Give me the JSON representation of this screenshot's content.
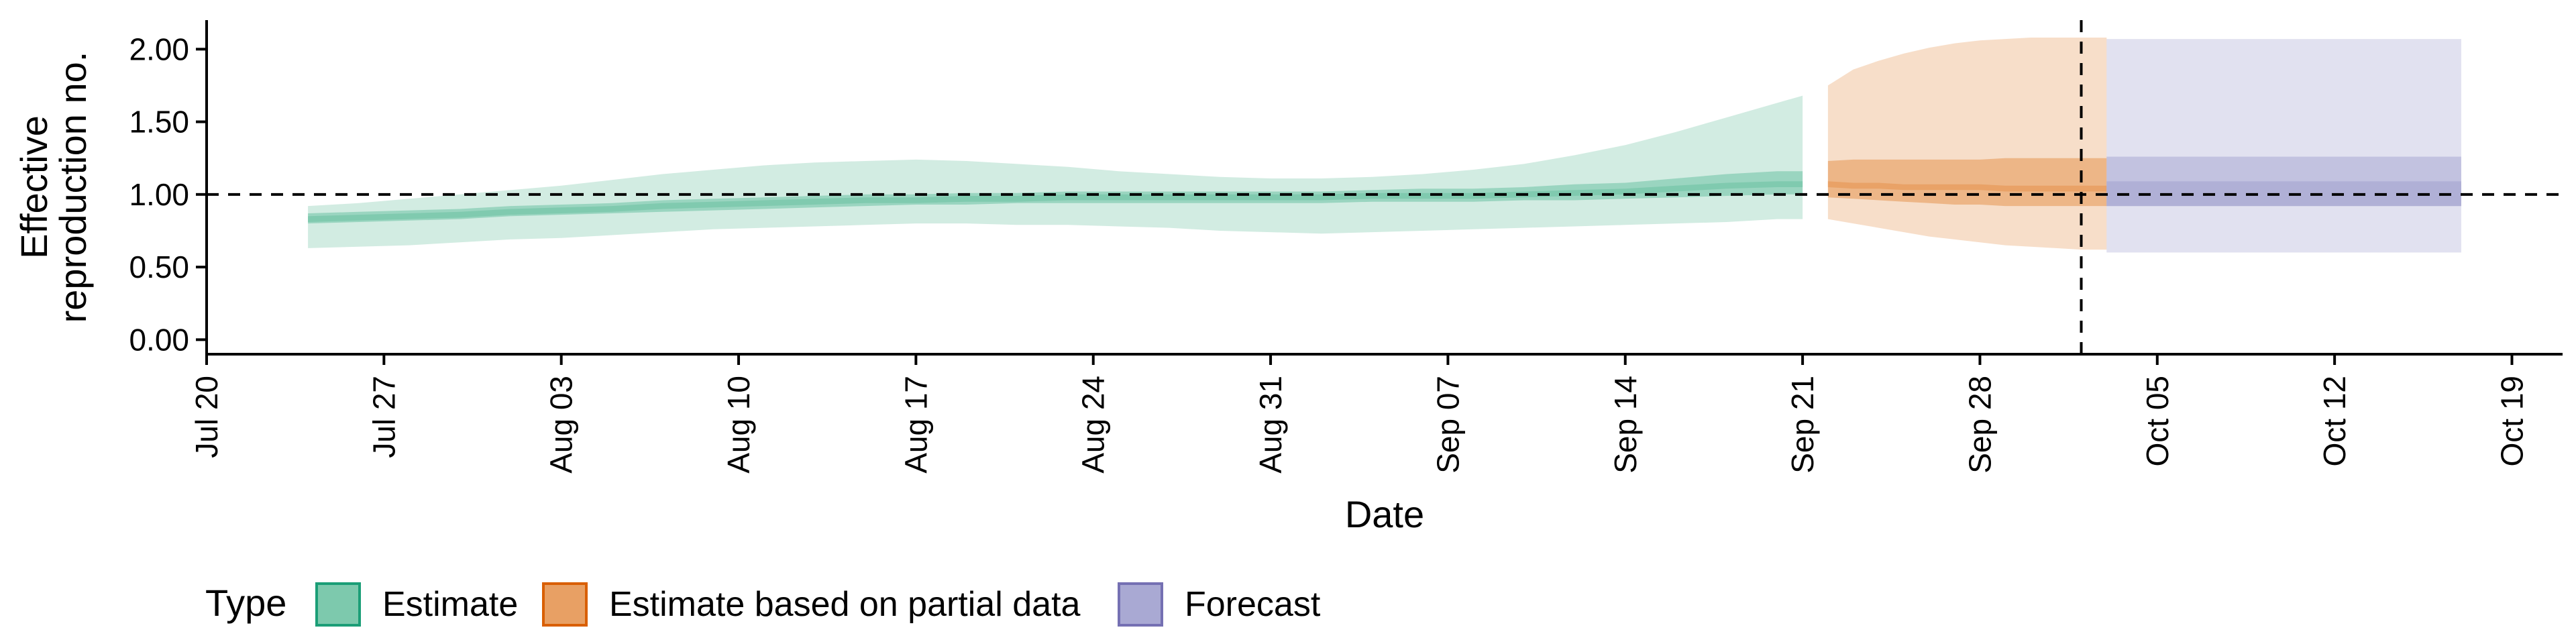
{
  "chart_data": {
    "type": "area",
    "xlabel": "Date",
    "ylabel_lines": [
      "Effective",
      "reproduction no."
    ],
    "x_ticks": [
      "Jul 20",
      "Jul 27",
      "Aug 03",
      "Aug 10",
      "Aug 17",
      "Aug 24",
      "Aug 31",
      "Sep 07",
      "Sep 14",
      "Sep 21",
      "Sep 28",
      "Oct 05",
      "Oct 12",
      "Oct 19"
    ],
    "x_tick_dates": [
      "2020-07-20",
      "2020-07-27",
      "2020-08-03",
      "2020-08-10",
      "2020-08-17",
      "2020-08-24",
      "2020-08-31",
      "2020-09-07",
      "2020-09-14",
      "2020-09-21",
      "2020-09-28",
      "2020-10-05",
      "2020-10-12",
      "2020-10-19"
    ],
    "x_range": [
      "2020-07-20",
      "2020-10-21"
    ],
    "y_ticks": [
      "0.00",
      "0.50",
      "1.00",
      "1.50",
      "2.00"
    ],
    "y_tick_values": [
      0,
      0.5,
      1.0,
      1.5,
      2.0
    ],
    "ylim": [
      -0.1,
      2.2
    ],
    "reference_hline": 1.0,
    "reference_vline_date": "2020-10-02",
    "legend": {
      "title": "Type",
      "position": "bottom-left",
      "items": [
        {
          "label": "Estimate",
          "fill": "#7dc9ad",
          "stroke": "#1b9e77"
        },
        {
          "label": "Estimate based on partial data",
          "fill": "#e8a064",
          "stroke": "#d95f02"
        },
        {
          "label": "Forecast",
          "fill": "#a9a9d3",
          "stroke": "#7570b3"
        }
      ]
    },
    "series": [
      {
        "name": "Estimate",
        "color": "#1b9e77",
        "dates": [
          "2020-07-24",
          "2020-07-26",
          "2020-07-28",
          "2020-07-30",
          "2020-08-01",
          "2020-08-03",
          "2020-08-05",
          "2020-08-07",
          "2020-08-09",
          "2020-08-11",
          "2020-08-13",
          "2020-08-15",
          "2020-08-17",
          "2020-08-19",
          "2020-08-21",
          "2020-08-23",
          "2020-08-25",
          "2020-08-27",
          "2020-08-29",
          "2020-08-31",
          "2020-09-02",
          "2020-09-04",
          "2020-09-06",
          "2020-09-08",
          "2020-09-10",
          "2020-09-12",
          "2020-09-14",
          "2020-09-16",
          "2020-09-18",
          "2020-09-20",
          "2020-09-21"
        ],
        "median": [
          0.83,
          0.84,
          0.85,
          0.86,
          0.88,
          0.89,
          0.9,
          0.92,
          0.93,
          0.94,
          0.95,
          0.96,
          0.96,
          0.97,
          0.97,
          0.98,
          0.98,
          0.98,
          0.98,
          0.98,
          0.98,
          0.99,
          0.99,
          0.99,
          1.0,
          1.01,
          1.02,
          1.04,
          1.06,
          1.07,
          1.07
        ],
        "lower_50": [
          0.8,
          0.81,
          0.82,
          0.83,
          0.85,
          0.86,
          0.87,
          0.88,
          0.89,
          0.9,
          0.91,
          0.92,
          0.93,
          0.93,
          0.94,
          0.94,
          0.94,
          0.94,
          0.94,
          0.94,
          0.94,
          0.95,
          0.95,
          0.95,
          0.96,
          0.96,
          0.97,
          0.98,
          0.99,
          1.0,
          1.0
        ],
        "upper_50": [
          0.87,
          0.88,
          0.89,
          0.9,
          0.92,
          0.93,
          0.94,
          0.96,
          0.97,
          0.98,
          0.99,
          1.0,
          1.0,
          1.01,
          1.01,
          1.02,
          1.02,
          1.02,
          1.02,
          1.02,
          1.02,
          1.03,
          1.04,
          1.04,
          1.05,
          1.07,
          1.08,
          1.11,
          1.14,
          1.16,
          1.16
        ],
        "lower_90": [
          0.63,
          0.64,
          0.65,
          0.67,
          0.69,
          0.7,
          0.72,
          0.74,
          0.76,
          0.77,
          0.78,
          0.79,
          0.8,
          0.8,
          0.79,
          0.79,
          0.78,
          0.77,
          0.75,
          0.74,
          0.73,
          0.74,
          0.75,
          0.76,
          0.77,
          0.78,
          0.79,
          0.8,
          0.81,
          0.83,
          0.83
        ],
        "upper_90": [
          0.92,
          0.94,
          0.97,
          1.0,
          1.03,
          1.06,
          1.1,
          1.14,
          1.17,
          1.2,
          1.22,
          1.23,
          1.24,
          1.23,
          1.21,
          1.19,
          1.16,
          1.14,
          1.12,
          1.11,
          1.11,
          1.12,
          1.14,
          1.17,
          1.21,
          1.27,
          1.34,
          1.43,
          1.53,
          1.63,
          1.68
        ]
      },
      {
        "name": "Estimate based on partial data",
        "color": "#d95f02",
        "dates": [
          "2020-09-22",
          "2020-09-23",
          "2020-09-24",
          "2020-09-25",
          "2020-09-26",
          "2020-09-27",
          "2020-09-28",
          "2020-09-29",
          "2020-09-30",
          "2020-10-01",
          "2020-10-02",
          "2020-10-03"
        ],
        "median": [
          1.07,
          1.06,
          1.06,
          1.05,
          1.05,
          1.05,
          1.05,
          1.04,
          1.04,
          1.04,
          1.04,
          1.04
        ],
        "lower_50": [
          0.98,
          0.97,
          0.96,
          0.95,
          0.94,
          0.93,
          0.93,
          0.92,
          0.92,
          0.92,
          0.92,
          0.92
        ],
        "upper_50": [
          1.23,
          1.24,
          1.24,
          1.24,
          1.24,
          1.24,
          1.24,
          1.25,
          1.25,
          1.25,
          1.25,
          1.25
        ],
        "lower_90": [
          0.83,
          0.8,
          0.77,
          0.74,
          0.71,
          0.69,
          0.67,
          0.65,
          0.64,
          0.63,
          0.62,
          0.62
        ],
        "upper_90": [
          1.75,
          1.86,
          1.92,
          1.97,
          2.01,
          2.04,
          2.06,
          2.07,
          2.08,
          2.08,
          2.08,
          2.08
        ]
      },
      {
        "name": "Forecast",
        "color": "#7570b3",
        "dates": [
          "2020-10-03",
          "2020-10-17"
        ],
        "median": [
          1.06,
          1.06
        ],
        "lower_50": [
          0.92,
          0.92
        ],
        "upper_50": [
          1.09,
          1.09
        ],
        "lower_90": [
          0.6,
          0.6
        ],
        "upper_90": [
          2.07,
          2.07
        ],
        "outer_upper": [
          1.26,
          1.26
        ]
      }
    ]
  }
}
